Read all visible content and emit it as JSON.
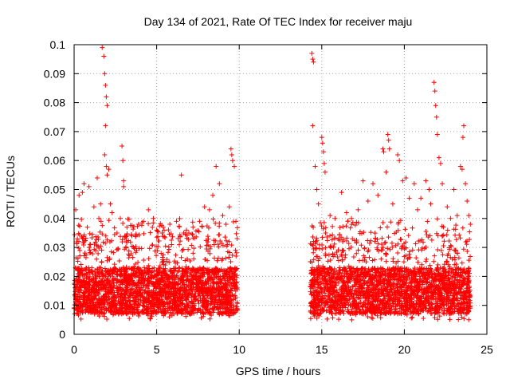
{
  "chart_data": {
    "type": "scatter",
    "title": "Day 134 of 2021, Rate Of TEC Index for receiver maju",
    "xlabel": "GPS time / hours",
    "ylabel": "ROTI / TECUs",
    "xlim": [
      0,
      25
    ],
    "ylim": [
      0,
      0.1
    ],
    "xticks": [
      "0",
      "5",
      "10",
      "15",
      "20",
      "25"
    ],
    "yticks": [
      "0",
      "0.01",
      "0.02",
      "0.03",
      "0.04",
      "0.05",
      "0.06",
      "0.07",
      "0.08",
      "0.09",
      "0.1"
    ],
    "marker": "+",
    "color": "#ff0000",
    "grid": true,
    "series": [
      {
        "name": "ROTI",
        "dense_segments": [
          {
            "t_start": 0.0,
            "t_end": 9.9,
            "typical_min": 0.005,
            "typical_max": 0.035
          },
          {
            "t_start": 14.3,
            "t_end": 24.0,
            "typical_min": 0.005,
            "typical_max": 0.035
          }
        ],
        "points": [
          [
            0.1,
            0.043
          ],
          [
            0.2,
            0.033
          ],
          [
            0.3,
            0.048
          ],
          [
            0.5,
            0.049
          ],
          [
            0.6,
            0.052
          ],
          [
            0.8,
            0.037
          ],
          [
            0.9,
            0.051
          ],
          [
            1.0,
            0.031
          ],
          [
            1.2,
            0.044
          ],
          [
            1.4,
            0.054
          ],
          [
            1.5,
            0.04
          ],
          [
            1.6,
            0.045
          ],
          [
            1.7,
            0.099
          ],
          [
            1.8,
            0.096
          ],
          [
            1.85,
            0.09
          ],
          [
            1.9,
            0.086
          ],
          [
            1.95,
            0.082
          ],
          [
            2.0,
            0.079
          ],
          [
            1.9,
            0.072
          ],
          [
            1.85,
            0.062
          ],
          [
            1.95,
            0.058
          ],
          [
            2.0,
            0.055
          ],
          [
            2.1,
            0.057
          ],
          [
            2.2,
            0.045
          ],
          [
            2.3,
            0.042
          ],
          [
            2.6,
            0.035
          ],
          [
            2.8,
            0.04
          ],
          [
            2.9,
            0.065
          ],
          [
            2.95,
            0.06
          ],
          [
            3.0,
            0.053
          ],
          [
            3.0,
            0.051
          ],
          [
            3.2,
            0.037
          ],
          [
            3.5,
            0.034
          ],
          [
            3.9,
            0.038
          ],
          [
            4.2,
            0.039
          ],
          [
            4.5,
            0.043
          ],
          [
            4.8,
            0.04
          ],
          [
            5.0,
            0.036
          ],
          [
            5.4,
            0.037
          ],
          [
            5.8,
            0.038
          ],
          [
            6.2,
            0.039
          ],
          [
            6.5,
            0.055
          ],
          [
            6.8,
            0.036
          ],
          [
            7.2,
            0.037
          ],
          [
            7.6,
            0.039
          ],
          [
            7.9,
            0.044
          ],
          [
            8.2,
            0.043
          ],
          [
            8.4,
            0.048
          ],
          [
            8.6,
            0.058
          ],
          [
            8.8,
            0.052
          ],
          [
            9.0,
            0.041
          ],
          [
            9.2,
            0.038
          ],
          [
            9.4,
            0.044
          ],
          [
            9.5,
            0.064
          ],
          [
            9.55,
            0.062
          ],
          [
            9.6,
            0.06
          ],
          [
            9.7,
            0.058
          ],
          [
            9.8,
            0.039
          ],
          [
            14.4,
            0.097
          ],
          [
            14.45,
            0.095
          ],
          [
            14.5,
            0.094
          ],
          [
            14.45,
            0.072
          ],
          [
            14.6,
            0.058
          ],
          [
            14.7,
            0.05
          ],
          [
            14.8,
            0.045
          ],
          [
            15.0,
            0.068
          ],
          [
            15.05,
            0.066
          ],
          [
            15.1,
            0.063
          ],
          [
            15.15,
            0.059
          ],
          [
            15.2,
            0.056
          ],
          [
            15.5,
            0.041
          ],
          [
            15.8,
            0.04
          ],
          [
            16.2,
            0.049
          ],
          [
            16.5,
            0.042
          ],
          [
            16.8,
            0.04
          ],
          [
            17.2,
            0.043
          ],
          [
            17.5,
            0.053
          ],
          [
            17.8,
            0.046
          ],
          [
            18.1,
            0.052
          ],
          [
            18.4,
            0.048
          ],
          [
            18.7,
            0.064
          ],
          [
            18.75,
            0.063
          ],
          [
            18.9,
            0.056
          ],
          [
            19.0,
            0.069
          ],
          [
            19.05,
            0.067
          ],
          [
            19.1,
            0.064
          ],
          [
            19.3,
            0.045
          ],
          [
            19.6,
            0.062
          ],
          [
            19.7,
            0.06
          ],
          [
            19.9,
            0.053
          ],
          [
            20.1,
            0.054
          ],
          [
            20.3,
            0.047
          ],
          [
            20.6,
            0.052
          ],
          [
            20.8,
            0.043
          ],
          [
            21.0,
            0.047
          ],
          [
            21.3,
            0.053
          ],
          [
            21.5,
            0.05
          ],
          [
            21.6,
            0.045
          ],
          [
            21.8,
            0.087
          ],
          [
            21.85,
            0.084
          ],
          [
            21.9,
            0.079
          ],
          [
            21.95,
            0.075
          ],
          [
            22.0,
            0.069
          ],
          [
            22.1,
            0.061
          ],
          [
            22.2,
            0.059
          ],
          [
            22.3,
            0.052
          ],
          [
            22.6,
            0.044
          ],
          [
            22.8,
            0.04
          ],
          [
            23.0,
            0.05
          ],
          [
            23.2,
            0.041
          ],
          [
            23.4,
            0.058
          ],
          [
            23.5,
            0.057
          ],
          [
            23.55,
            0.068
          ],
          [
            23.6,
            0.072
          ],
          [
            23.7,
            0.052
          ],
          [
            23.8,
            0.046
          ],
          [
            23.9,
            0.041
          ],
          [
            24.0,
            0.038
          ]
        ]
      }
    ]
  }
}
